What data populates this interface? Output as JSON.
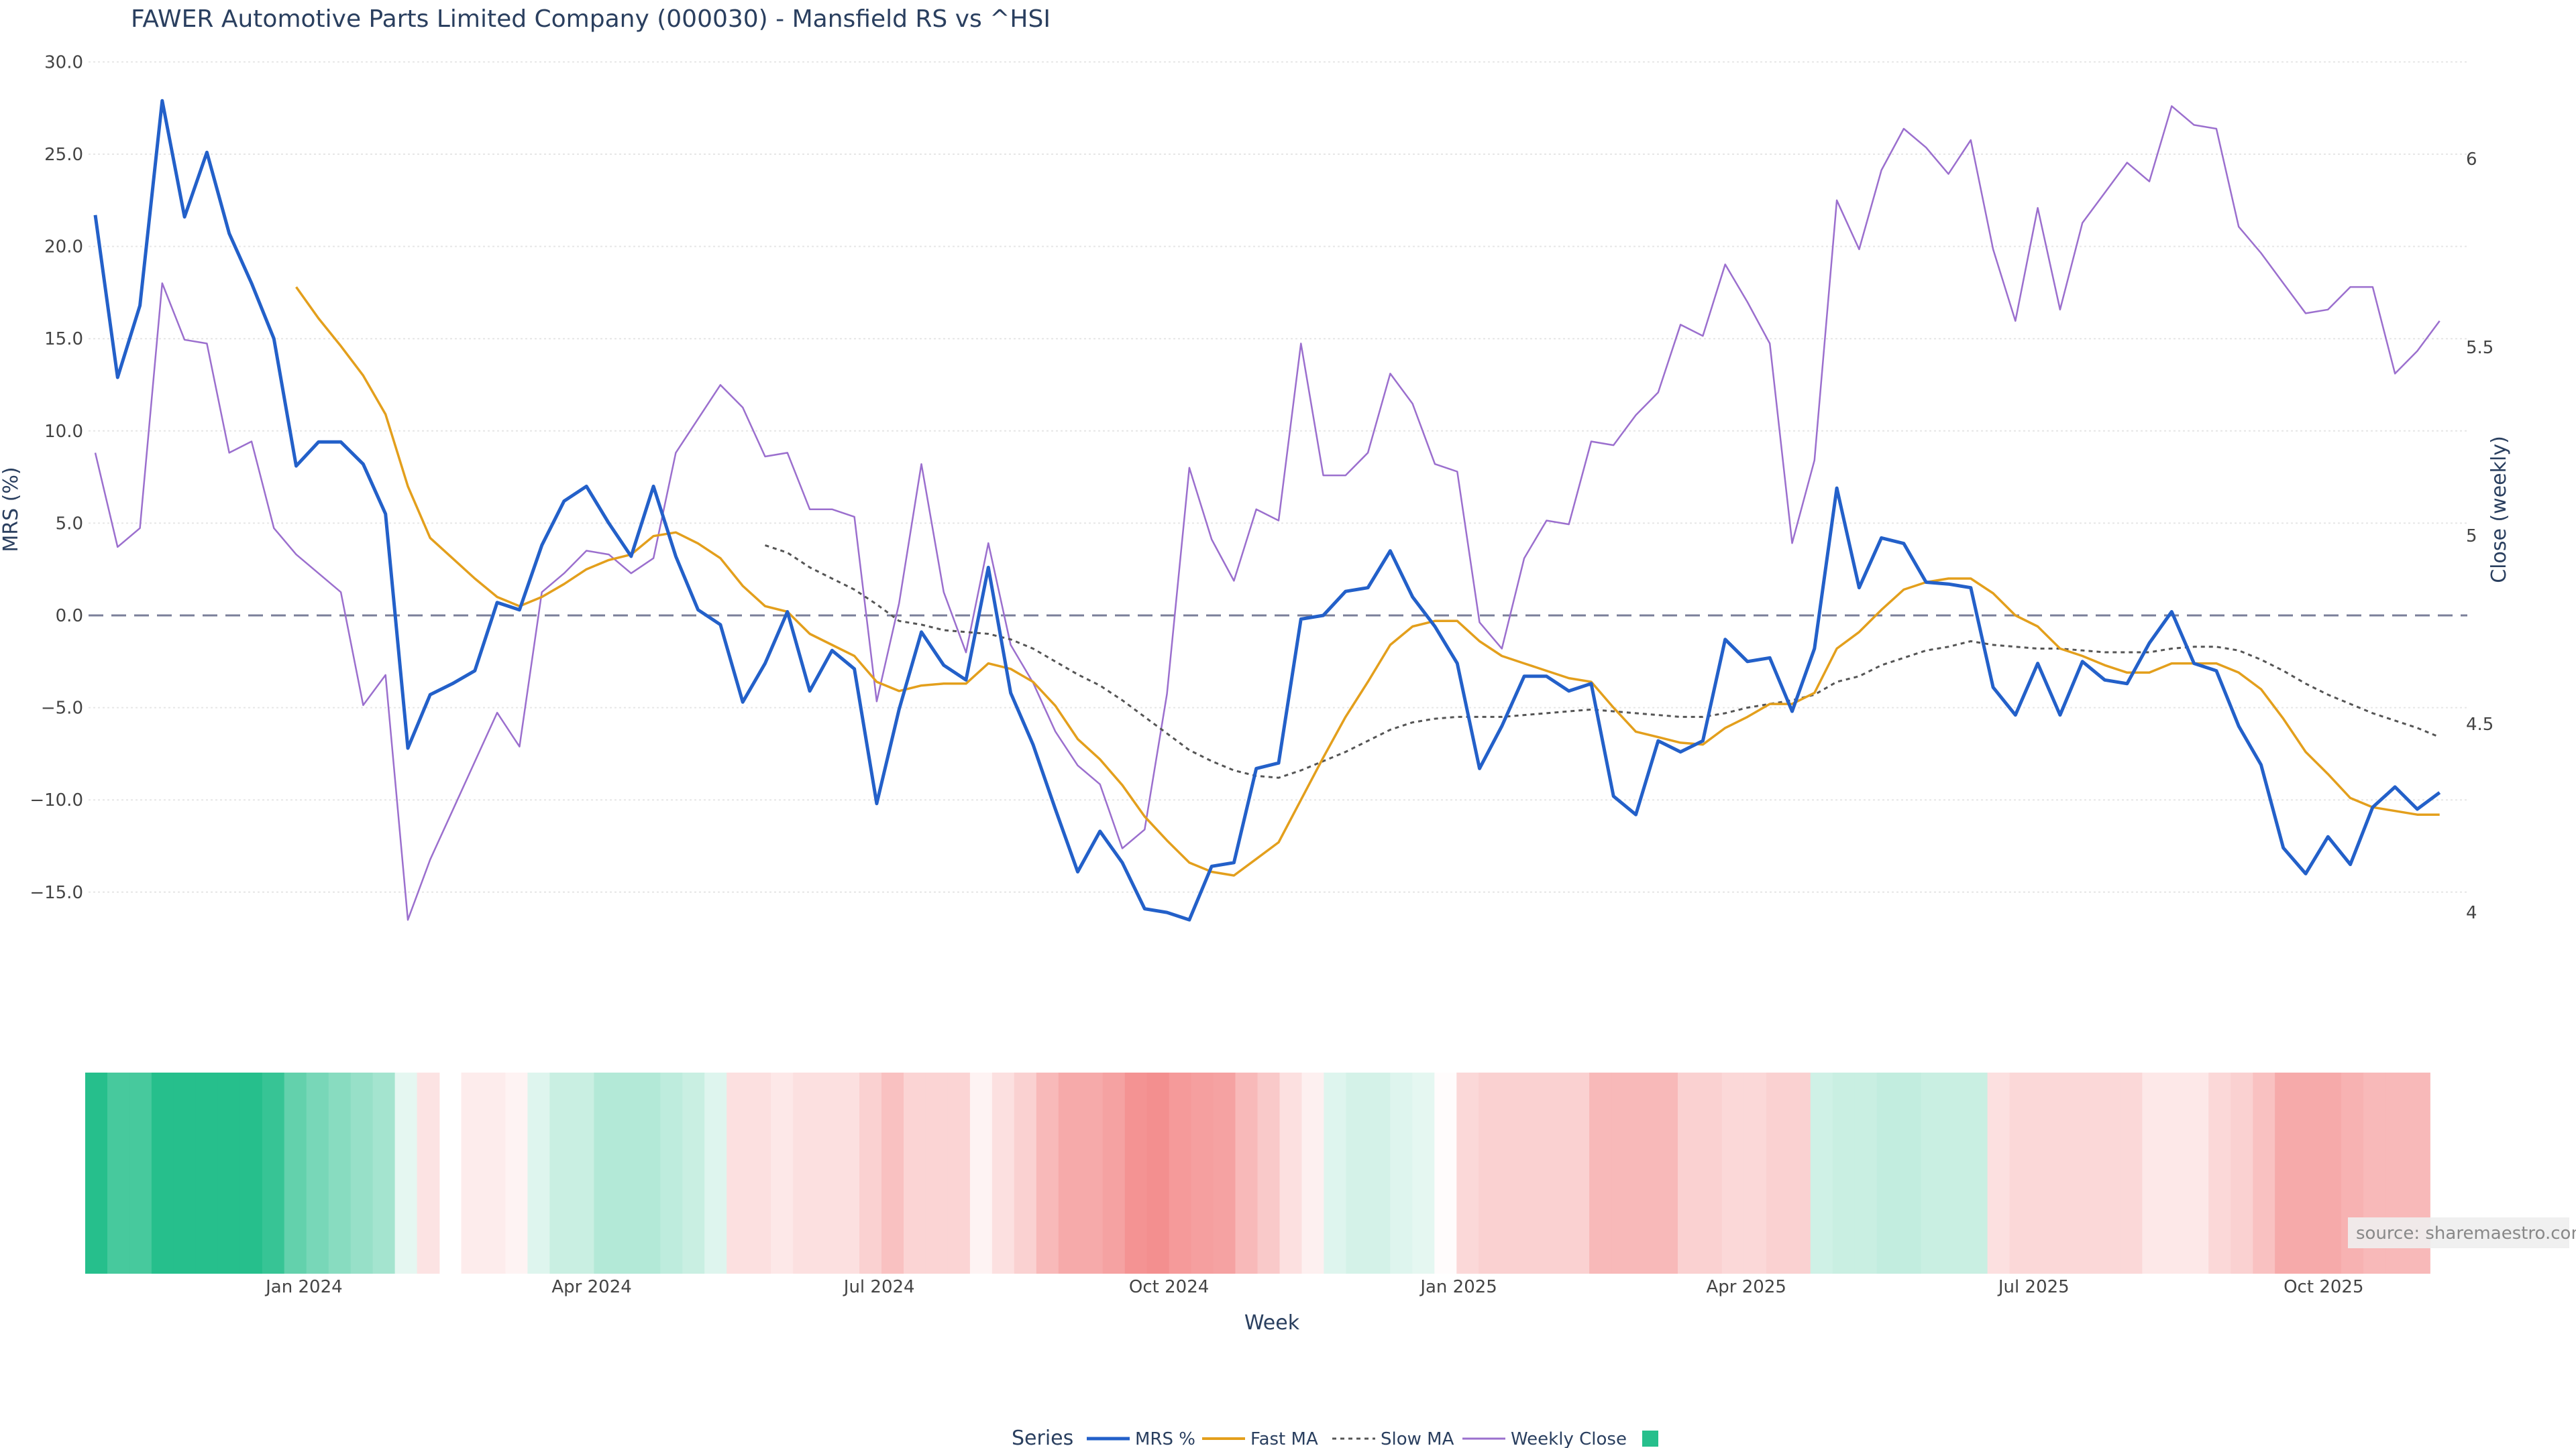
{
  "chart_data": {
    "type": "line",
    "title": "FAWER Automotive Parts Limited Company (000030) - Mansfield RS vs ^HSI",
    "ylabel_left": "MRS (%)",
    "ylabel_right": "Close (weekly)",
    "xlabel": "Week",
    "y_left_ticks": [
      "30.0",
      "25.0",
      "20.0",
      "15.0",
      "10.0",
      "5.0",
      "0.0",
      "−5.0",
      "−10.0",
      "−15.0"
    ],
    "y_left_tick_values": [
      30,
      25,
      20,
      15,
      10,
      5,
      0,
      -5,
      -10,
      -15
    ],
    "y_right_ticks": [
      "6",
      "5.5",
      "5",
      "4.5",
      "4"
    ],
    "y_right_tick_values": [
      6,
      5.5,
      5,
      4.5,
      4
    ],
    "x_ticks": [
      "Jan 2024",
      "Apr 2024",
      "Jul 2024",
      "Oct 2024",
      "Jan 2025",
      "Apr 2025",
      "Jul 2025",
      "Oct 2025"
    ],
    "x_tick_weeks": [
      9.9,
      22.9,
      35.9,
      49.0,
      62.1,
      75.1,
      88.1,
      101.2
    ],
    "weeks_total": 107,
    "ylim_left": [
      -20,
      30
    ],
    "ylim_right": [
      3.95,
      6.2
    ],
    "series": [
      {
        "name": "MRS %",
        "color": "#2360c9",
        "width": 5,
        "values": [
          21.7,
          12.9,
          16.8,
          27.9,
          21.6,
          25.1,
          20.7,
          18.0,
          15.0,
          8.1,
          9.4,
          9.4,
          8.2,
          5.5,
          -7.2,
          -4.3,
          -3.7,
          -3.0,
          0.7,
          0.3,
          3.8,
          6.2,
          7.0,
          5.0,
          3.2,
          7.0,
          3.2,
          0.3,
          -0.5,
          -4.7,
          -2.6,
          0.2,
          -4.1,
          -1.9,
          -2.9,
          -10.2,
          -5.1,
          -0.9,
          -2.7,
          -3.5,
          2.6,
          -4.2,
          -7.0,
          -10.5,
          -13.9,
          -11.7,
          -13.4,
          -15.9,
          -16.1,
          -16.5,
          -13.6,
          -13.4,
          -8.3,
          -8.0,
          -0.2,
          0.0,
          1.3,
          1.5,
          3.5,
          1.0,
          -0.6,
          -2.6,
          -8.3,
          -6.0,
          -3.3,
          -3.3,
          -4.1,
          -3.7,
          -9.8,
          -10.8,
          -6.8,
          -7.4,
          -6.8,
          -1.3,
          -2.5,
          -2.3,
          -5.2,
          -1.8,
          6.9,
          1.5,
          4.2,
          3.9,
          1.8,
          1.7,
          1.5,
          -3.9,
          -5.4,
          -2.6,
          -5.4,
          -2.5,
          -3.5,
          -3.7,
          -1.5,
          0.2,
          -2.6,
          -3.0,
          -6.0,
          -8.1,
          -12.6,
          -14.0,
          -12.0,
          -13.5,
          -10.4,
          -9.3,
          -10.5,
          -9.6
        ]
      },
      {
        "name": "Fast MA",
        "color": "#e39f1c",
        "width": 3.5,
        "values": [
          null,
          null,
          null,
          null,
          null,
          null,
          null,
          null,
          null,
          17.8,
          16.1,
          14.6,
          13.0,
          10.9,
          7.0,
          4.2,
          3.1,
          2.0,
          1.0,
          0.5,
          1.0,
          1.7,
          2.5,
          3.0,
          3.3,
          4.3,
          4.5,
          3.9,
          3.1,
          1.6,
          0.5,
          0.2,
          -1.0,
          -1.6,
          -2.2,
          -3.6,
          -4.1,
          -3.8,
          -3.7,
          -3.7,
          -2.6,
          -2.9,
          -3.6,
          -4.9,
          -6.7,
          -7.8,
          -9.2,
          -10.9,
          -12.2,
          -13.4,
          -13.9,
          -14.1,
          -13.2,
          -12.3,
          -10.0,
          -7.7,
          -5.5,
          -3.6,
          -1.6,
          -0.6,
          -0.3,
          -0.3,
          -1.4,
          -2.2,
          -2.6,
          -3.0,
          -3.4,
          -3.6,
          -5.0,
          -6.3,
          -6.6,
          -6.9,
          -7.0,
          -6.1,
          -5.5,
          -4.8,
          -4.8,
          -4.2,
          -1.8,
          -0.9,
          0.3,
          1.4,
          1.8,
          2.0,
          2.0,
          1.2,
          0.0,
          -0.6,
          -1.8,
          -2.2,
          -2.7,
          -3.1,
          -3.1,
          -2.6,
          -2.6,
          -2.6,
          -3.1,
          -4.0,
          -5.6,
          -7.4,
          -8.6,
          -9.9,
          -10.4,
          -10.6,
          -10.8,
          -10.8
        ]
      },
      {
        "name": "Slow MA",
        "color": "#555555",
        "width": 3,
        "dash": "6,6",
        "values": [
          null,
          null,
          null,
          null,
          null,
          null,
          null,
          null,
          null,
          null,
          null,
          null,
          null,
          null,
          null,
          null,
          null,
          null,
          null,
          null,
          null,
          null,
          null,
          null,
          null,
          null,
          null,
          null,
          null,
          null,
          3.8,
          3.4,
          2.6,
          2.0,
          1.4,
          0.6,
          -0.3,
          -0.5,
          -0.8,
          -0.9,
          -1.0,
          -1.3,
          -1.8,
          -2.5,
          -3.2,
          -3.8,
          -4.6,
          -5.5,
          -6.4,
          -7.3,
          -7.9,
          -8.4,
          -8.7,
          -8.8,
          -8.4,
          -7.9,
          -7.4,
          -6.8,
          -6.2,
          -5.8,
          -5.6,
          -5.5,
          -5.5,
          -5.5,
          -5.4,
          -5.3,
          -5.2,
          -5.1,
          -5.2,
          -5.3,
          -5.4,
          -5.5,
          -5.5,
          -5.3,
          -5.0,
          -4.8,
          -4.6,
          -4.3,
          -3.6,
          -3.3,
          -2.7,
          -2.3,
          -1.9,
          -1.7,
          -1.4,
          -1.6,
          -1.7,
          -1.8,
          -1.8,
          -1.9,
          -2.0,
          -2.0,
          -2.0,
          -1.8,
          -1.7,
          -1.7,
          -1.9,
          -2.4,
          -3.0,
          -3.7,
          -4.3,
          -4.8,
          -5.3,
          -5.7,
          -6.1,
          -6.6
        ]
      },
      {
        "name": "Weekly Close",
        "color": "#9b6fce",
        "width": 2.5,
        "axis": "right",
        "values": [
          5.22,
          4.97,
          5.02,
          5.67,
          5.52,
          5.51,
          5.22,
          5.25,
          5.02,
          4.95,
          4.9,
          4.85,
          4.55,
          4.63,
          3.98,
          4.14,
          4.27,
          4.4,
          4.53,
          4.44,
          4.85,
          4.9,
          4.96,
          4.95,
          4.9,
          4.94,
          5.22,
          5.31,
          5.4,
          5.34,
          5.21,
          5.22,
          5.07,
          5.07,
          5.05,
          4.56,
          4.82,
          5.19,
          4.85,
          4.69,
          4.98,
          4.71,
          4.61,
          4.48,
          4.39,
          4.34,
          4.17,
          4.22,
          4.58,
          5.18,
          4.99,
          4.88,
          5.07,
          5.04,
          5.51,
          5.16,
          5.16,
          5.22,
          5.43,
          5.35,
          5.19,
          5.17,
          4.77,
          4.7,
          4.94,
          5.04,
          5.03,
          5.25,
          5.24,
          5.32,
          5.38,
          5.56,
          5.53,
          5.72,
          5.62,
          5.51,
          4.98,
          5.2,
          5.89,
          5.76,
          5.97,
          6.08,
          6.03,
          5.96,
          6.05,
          5.76,
          5.57,
          5.87,
          5.6,
          5.83,
          5.91,
          5.99,
          5.94,
          6.14,
          6.09,
          6.08,
          5.82,
          5.75,
          5.67,
          5.59,
          5.6,
          5.66,
          5.66,
          5.43,
          5.49,
          5.57
        ]
      }
    ],
    "legend_title": "Series",
    "legend_labels": [
      "MRS %",
      "Fast MA",
      "Slow MA",
      "Weekly Close"
    ],
    "legend_location": "bottom-center",
    "heatmap_label": "",
    "heatmap_gap_week": 16,
    "heatmap_values": [
      1.0,
      0.85,
      0.85,
      1.0,
      1.0,
      1.0,
      1.0,
      1.0,
      0.92,
      0.72,
      0.62,
      0.55,
      0.48,
      0.42,
      0.12,
      -0.18,
      -0.02,
      -0.12,
      -0.12,
      -0.08,
      0.15,
      0.25,
      0.25,
      0.35,
      0.35,
      0.35,
      0.3,
      0.25,
      0.15,
      -0.2,
      -0.2,
      -0.15,
      -0.2,
      -0.2,
      -0.2,
      -0.3,
      -0.4,
      -0.28,
      -0.28,
      -0.28,
      -0.08,
      -0.2,
      -0.3,
      -0.45,
      -0.55,
      -0.55,
      -0.6,
      -0.7,
      -0.72,
      -0.65,
      -0.62,
      -0.6,
      -0.45,
      -0.35,
      -0.2,
      -0.1,
      0.15,
      0.2,
      0.2,
      0.15,
      0.12,
      -0.02,
      -0.25,
      -0.3,
      -0.3,
      -0.3,
      -0.3,
      -0.3,
      -0.45,
      -0.45,
      -0.45,
      -0.45,
      -0.3,
      -0.3,
      -0.25,
      -0.25,
      -0.3,
      -0.3,
      0.22,
      0.25,
      0.25,
      0.28,
      0.28,
      0.25,
      0.25,
      0.25,
      -0.2,
      -0.25,
      -0.25,
      -0.25,
      -0.25,
      -0.25,
      -0.25,
      -0.15,
      -0.15,
      -0.15,
      -0.25,
      -0.3,
      -0.4,
      -0.55,
      -0.55,
      -0.55,
      -0.5,
      -0.45,
      -0.45,
      -0.45
    ]
  },
  "source_text": "source: sharemaestro.com"
}
